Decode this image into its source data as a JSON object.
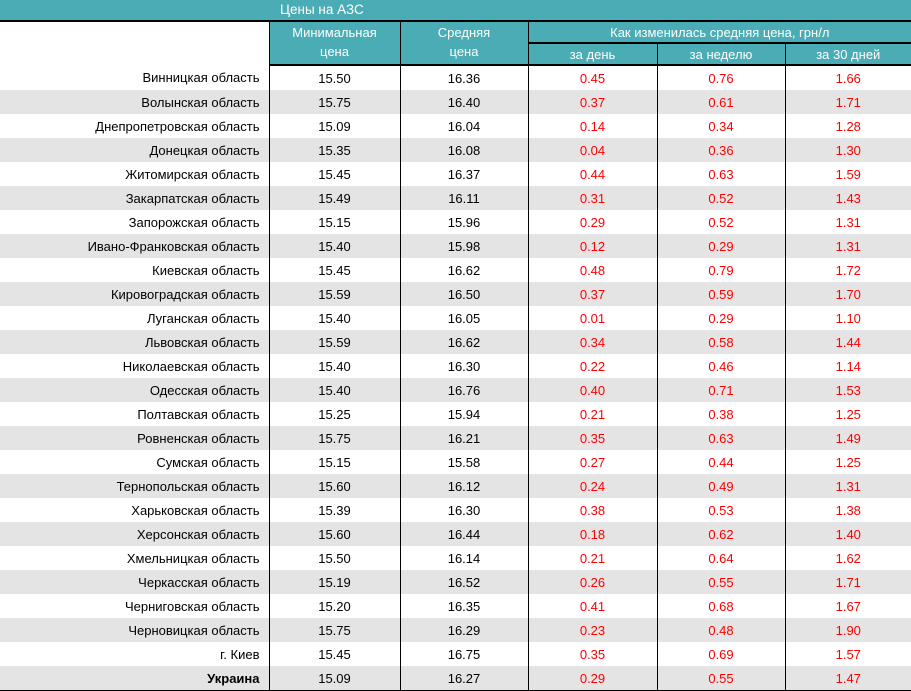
{
  "title": "Цены на АЗС",
  "header": {
    "min_price": "Минимальная\nцена",
    "avg_price": "Средняя\nцена",
    "change_group": "Как изменилась средняя цена, грн/л",
    "per_day": "за день",
    "per_week": "за неделю",
    "per_30_days": "за 30 дней"
  },
  "colors": {
    "header_teal": "#4aacb5",
    "stripe_gray": "#e4e4e4",
    "change_red": "#ff0000",
    "border_black": "#000000",
    "header_text": "#ffffff"
  },
  "chart_data": {
    "type": "table",
    "title": "Цены на АЗС",
    "columns": [
      "",
      "Минимальная цена",
      "Средняя цена",
      "за день",
      "за неделю",
      "за 30 дней"
    ],
    "column_group": {
      "label": "Как изменилась средняя цена, грн/л",
      "columns": [
        "за день",
        "за неделю",
        "за 30 дней"
      ]
    },
    "rows": [
      [
        "Винницкая область",
        "15.50",
        "16.36",
        "0.45",
        "0.76",
        "1.66"
      ],
      [
        "Волынская область",
        "15.75",
        "16.40",
        "0.37",
        "0.61",
        "1.71"
      ],
      [
        "Днепропетровская область",
        "15.09",
        "16.04",
        "0.14",
        "0.34",
        "1.28"
      ],
      [
        "Донецкая область",
        "15.35",
        "16.08",
        "0.04",
        "0.36",
        "1.30"
      ],
      [
        "Житомирская область",
        "15.45",
        "16.37",
        "0.44",
        "0.63",
        "1.59"
      ],
      [
        "Закарпатская область",
        "15.49",
        "16.11",
        "0.31",
        "0.52",
        "1.43"
      ],
      [
        "Запорожская область",
        "15.15",
        "15.96",
        "0.29",
        "0.52",
        "1.31"
      ],
      [
        "Ивано-Франковская область",
        "15.40",
        "15.98",
        "0.12",
        "0.29",
        "1.31"
      ],
      [
        "Киевская область",
        "15.45",
        "16.62",
        "0.48",
        "0.79",
        "1.72"
      ],
      [
        "Кировоградская область",
        "15.59",
        "16.50",
        "0.37",
        "0.59",
        "1.70"
      ],
      [
        "Луганская область",
        "15.40",
        "16.05",
        "0.01",
        "0.29",
        "1.10"
      ],
      [
        "Львовская область",
        "15.59",
        "16.62",
        "0.34",
        "0.58",
        "1.44"
      ],
      [
        "Николаевская область",
        "15.40",
        "16.30",
        "0.22",
        "0.46",
        "1.14"
      ],
      [
        "Одесская область",
        "15.40",
        "16.76",
        "0.40",
        "0.71",
        "1.53"
      ],
      [
        "Полтавская область",
        "15.25",
        "15.94",
        "0.21",
        "0.38",
        "1.25"
      ],
      [
        "Ровненская область",
        "15.75",
        "16.21",
        "0.35",
        "0.63",
        "1.49"
      ],
      [
        "Сумская область",
        "15.15",
        "15.58",
        "0.27",
        "0.44",
        "1.25"
      ],
      [
        "Тернопольская область",
        "15.60",
        "16.12",
        "0.24",
        "0.49",
        "1.31"
      ],
      [
        "Харьковская область",
        "15.39",
        "16.30",
        "0.38",
        "0.53",
        "1.38"
      ],
      [
        "Херсонская область",
        "15.60",
        "16.44",
        "0.18",
        "0.62",
        "1.40"
      ],
      [
        "Хмельницкая область",
        "15.50",
        "16.14",
        "0.21",
        "0.64",
        "1.62"
      ],
      [
        "Черкасская область",
        "15.19",
        "16.52",
        "0.26",
        "0.55",
        "1.71"
      ],
      [
        "Черниговская область",
        "15.20",
        "16.35",
        "0.41",
        "0.68",
        "1.67"
      ],
      [
        "Черновицкая область",
        "15.75",
        "16.29",
        "0.23",
        "0.48",
        "1.90"
      ],
      [
        "г. Киев",
        "15.45",
        "16.75",
        "0.35",
        "0.69",
        "1.57"
      ],
      [
        "Украина",
        "15.09",
        "16.27",
        "0.29",
        "0.55",
        "1.47"
      ]
    ],
    "total_row_label": "Украина"
  }
}
